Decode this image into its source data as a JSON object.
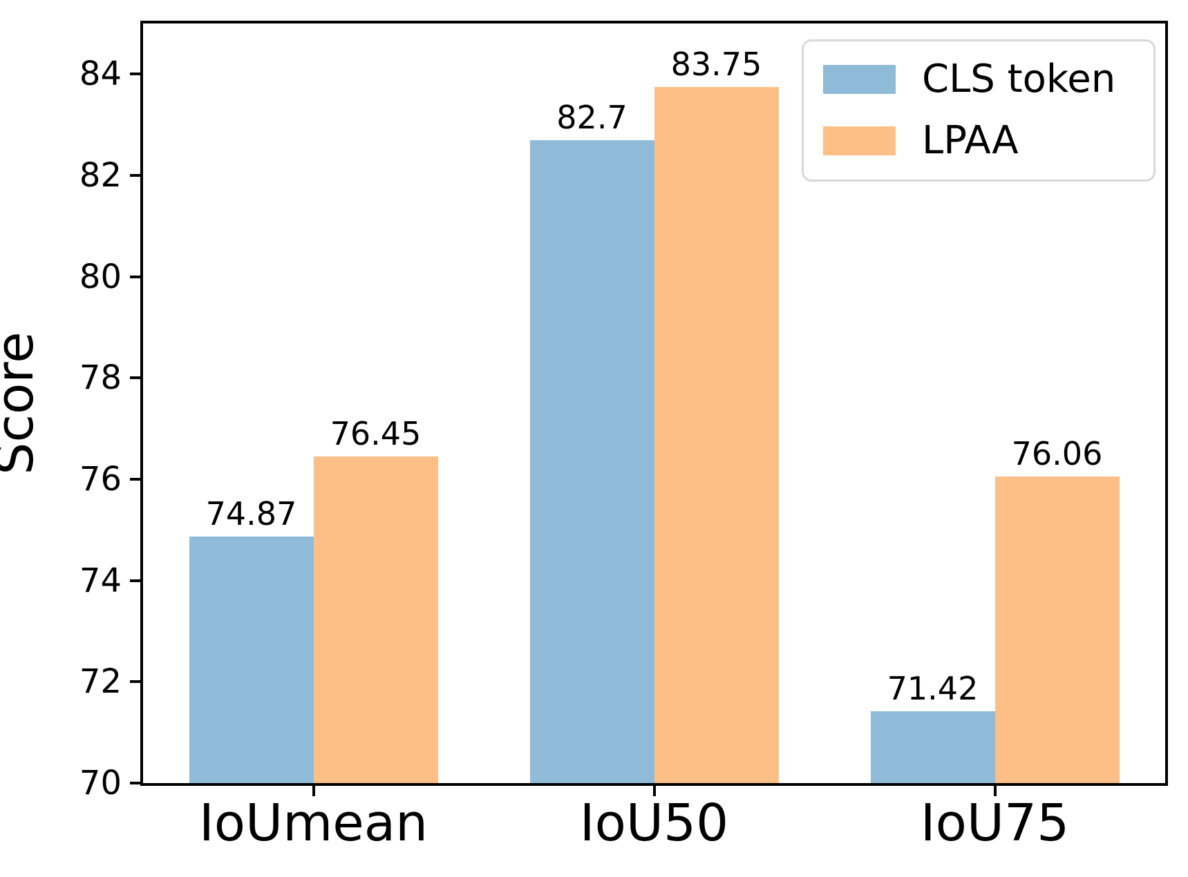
{
  "chart_data": {
    "type": "bar",
    "categories": [
      "IoUmean",
      "IoU50",
      "IoU75"
    ],
    "series": [
      {
        "name": "CLS token",
        "color": "#8fbbd9",
        "values": [
          74.87,
          82.7,
          71.42
        ],
        "labels": [
          "74.87",
          "82.7",
          "71.42"
        ]
      },
      {
        "name": "LPAA",
        "color": "#fdbf86",
        "values": [
          76.45,
          83.75,
          76.06
        ],
        "labels": [
          "76.45",
          "83.75",
          "76.06"
        ]
      }
    ],
    "title": "",
    "xlabel": "",
    "ylabel": "Score",
    "ylim": [
      70,
      85
    ],
    "yticks": [
      70,
      72,
      74,
      76,
      78,
      80,
      82,
      84
    ],
    "grid": false,
    "legend_position": "upper right",
    "bar_value_labels_shown": true,
    "axis_color": "#000000",
    "legend_border_color": "#d9d9d9"
  }
}
